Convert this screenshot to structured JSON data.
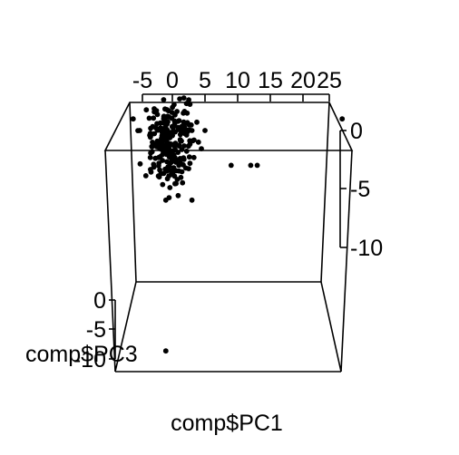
{
  "chart_data": {
    "type": "scatter",
    "title": "",
    "xlabel": "comp$PC1",
    "ylabel": "comp$PC3",
    "zlabel": "",
    "x_ticks": [
      "-5",
      "0",
      "5",
      "10",
      "15",
      "20",
      "25"
    ],
    "y_ticks": [
      "0",
      "-5",
      "-10"
    ],
    "z_ticks": [
      "0",
      "-5",
      "-10"
    ],
    "xlim": [
      -6,
      27
    ],
    "zlim": [
      2,
      -13
    ],
    "cluster": {
      "x_center": 0,
      "z_center": -1,
      "count": 240,
      "x_spread": 1.8,
      "z_spread": 1.6
    },
    "outliers": [
      {
        "x": -6,
        "z": 1
      },
      {
        "x": -5,
        "z": 0
      },
      {
        "x": -2,
        "z": -1
      },
      {
        "x": 3,
        "z": 0
      },
      {
        "x": 4,
        "z": -1
      },
      {
        "x": 5,
        "z": 0
      },
      {
        "x": 9,
        "z": -3
      },
      {
        "x": 12,
        "z": -3
      },
      {
        "x": 13,
        "z": -3
      },
      {
        "x": -1,
        "z": -6
      },
      {
        "x": 3,
        "z": -6
      },
      {
        "x": 1,
        "z": -3
      },
      {
        "x": -2,
        "z": -4
      },
      {
        "x": 26,
        "z": 1
      },
      {
        "x": -1,
        "z": -19
      }
    ],
    "grid": false,
    "legend": "none"
  }
}
